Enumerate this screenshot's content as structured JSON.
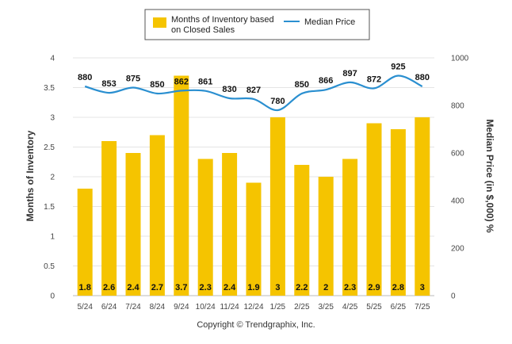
{
  "chart_data": {
    "type": "bar",
    "categories": [
      "5/24",
      "6/24",
      "7/24",
      "8/24",
      "9/24",
      "10/24",
      "11/24",
      "12/24",
      "1/25",
      "2/25",
      "3/25",
      "4/25",
      "5/25",
      "6/25",
      "7/25"
    ],
    "series": [
      {
        "name_lines": [
          "Months of Inventory based",
          "on Closed Sales"
        ],
        "type": "bar",
        "axis": "left",
        "color": "#f5c400",
        "values": [
          1.8,
          2.6,
          2.4,
          2.7,
          3.7,
          2.3,
          2.4,
          1.9,
          3,
          2.2,
          2,
          2.3,
          2.9,
          2.8,
          3
        ],
        "labels": [
          "1.8",
          "2.6",
          "2.4",
          "2.7",
          "3.7",
          "2.3",
          "2.4",
          "1.9",
          "3",
          "2.2",
          "2",
          "2.3",
          "2.9",
          "2.8",
          "3"
        ]
      },
      {
        "name": "Median Price",
        "type": "line",
        "axis": "right",
        "color": "#2a8fd0",
        "values": [
          880,
          853,
          875,
          850,
          862,
          861,
          830,
          827,
          780,
          850,
          866,
          897,
          872,
          925,
          880
        ],
        "labels": [
          "880",
          "853",
          "875",
          "850",
          "862",
          "861",
          "830",
          "827",
          "780",
          "850",
          "866",
          "897",
          "872",
          "925",
          "880"
        ]
      }
    ],
    "y_left": {
      "label": "Months of Inventory",
      "min": 0,
      "max": 4,
      "ticks": [
        0,
        0.5,
        1,
        1.5,
        2,
        2.5,
        3,
        3.5,
        4
      ],
      "tick_labels": [
        "0",
        "0.5",
        "1",
        "1.5",
        "2",
        "2.5",
        "3",
        "3.5",
        "4"
      ]
    },
    "y_right": {
      "label": "Median Price (in $,000) %",
      "min": 0,
      "max": 1000,
      "ticks": [
        0,
        200,
        400,
        600,
        800,
        1000
      ],
      "tick_labels": [
        "0",
        "200",
        "400",
        "600",
        "800",
        "1000"
      ]
    },
    "legend": "top-center",
    "grid": true
  },
  "footer": {
    "copyright": "Copyright © Trendgraphix, Inc."
  }
}
